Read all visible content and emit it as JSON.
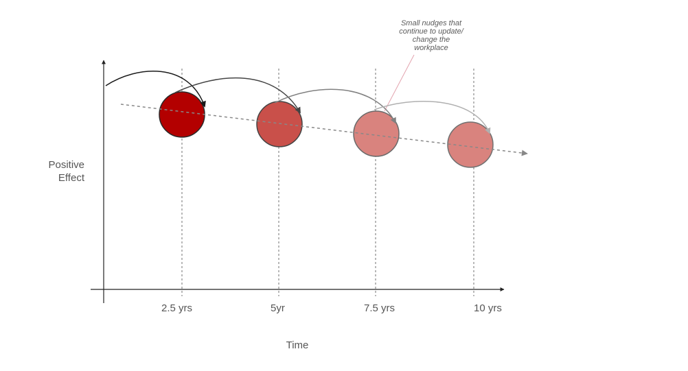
{
  "axes": {
    "y_label_lines": [
      "Positive",
      "Effect"
    ],
    "x_label": "Time"
  },
  "ticks": [
    "2.5 yrs",
    "5yr",
    "7.5 yrs",
    "10 yrs"
  ],
  "annotation_lines": [
    "Small nudges that",
    "continue to update/",
    "change the",
    "workplace"
  ],
  "bubbles": [
    {
      "label": "2.5 yrs",
      "fill": "#b30000",
      "stroke": "#2a2a2a"
    },
    {
      "label": "5yr",
      "fill": "#c9504a",
      "stroke": "#444444"
    },
    {
      "label": "7.5 yrs",
      "fill": "#d9837e",
      "stroke": "#6a6a6a"
    },
    {
      "label": "10 yrs",
      "fill": "#d9837e",
      "stroke": "#707070"
    }
  ],
  "colors": {
    "axis": "#222222",
    "guide": "#888888",
    "trend": "#888888",
    "annotation_leader": "#e3a3ae",
    "arc_colors": [
      "#1a1a1a",
      "#444444",
      "#808080",
      "#b0b0b0"
    ]
  }
}
